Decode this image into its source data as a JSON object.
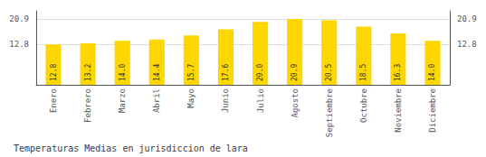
{
  "chart_data": {
    "type": "bar",
    "title": "Temperaturas Medias en jurisdiccion de lara",
    "categories": [
      "Enero",
      "Febrero",
      "Marzo",
      "Abril",
      "Mayo",
      "Junio",
      "Julio",
      "Agosto",
      "Septiembre",
      "Octubre",
      "Noviembre",
      "Diciembre"
    ],
    "values": [
      12.8,
      13.2,
      14.0,
      14.4,
      15.7,
      17.6,
      20.0,
      20.9,
      20.5,
      18.5,
      16.3,
      14.0
    ],
    "value_labels": [
      "12.8",
      "13.2",
      "14.0",
      "14.4",
      "15.7",
      "17.6",
      "20.0",
      "20.9",
      "20.5",
      "18.5",
      "16.3",
      "14.0"
    ],
    "data_labels": true,
    "color": "#FFD700",
    "ylim": [
      0,
      23.5
    ],
    "yticks": [
      20.9,
      12.8
    ],
    "y2lim": [
      0,
      23.5
    ],
    "y2ticks": [
      20.9,
      12.8
    ],
    "grid": true
  }
}
